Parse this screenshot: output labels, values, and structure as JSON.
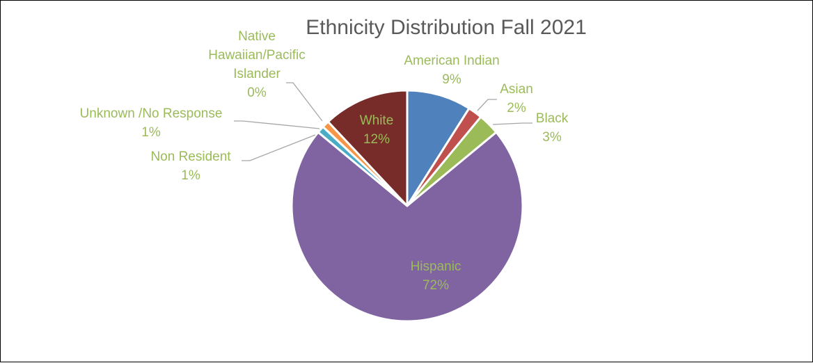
{
  "chart_data": {
    "type": "pie",
    "title": "Ethnicity Distribution Fall 2021",
    "label_color": "#9BBB59",
    "leader_color": "#A6A6A6",
    "slices": [
      {
        "name": "American Indian",
        "value": 9,
        "value_label": "9%",
        "color": "#4F81BD"
      },
      {
        "name": "Asian",
        "value": 2,
        "value_label": "2%",
        "color": "#C0504D"
      },
      {
        "name": "Black",
        "value": 3,
        "value_label": "3%",
        "color": "#9BBB59"
      },
      {
        "name": "Hispanic",
        "value": 72,
        "value_label": "72%",
        "color": "#8064A2"
      },
      {
        "name": "Non Resident",
        "value": 1,
        "value_label": "1%",
        "color": "#4BACC6"
      },
      {
        "name": "Unknown /No Response",
        "value": 1,
        "value_label": "1%",
        "color": "#F79646"
      },
      {
        "name": "Native Hawaiian/Pacific Islander",
        "value": 0,
        "value_label": "0%",
        "color": "#2C4D75"
      },
      {
        "name": "White",
        "value": 12,
        "value_label": "12%",
        "color": "#772C2A"
      }
    ]
  }
}
